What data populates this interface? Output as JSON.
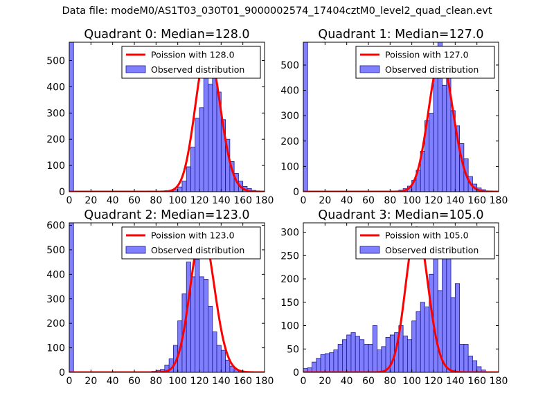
{
  "figure": {
    "suptitle": "Data file: modeM0/AS1T03_030T01_9000002574_17404cztM0_level2_quad_clean.evt"
  },
  "colors": {
    "bar_fill": "#7f7fff",
    "bar_edge": "#1a1a8c",
    "model_line": "#ff0000"
  },
  "chart_data": [
    {
      "type": "bar",
      "title": "Quadrant 0: Median=128.0",
      "xlim": [
        0,
        180
      ],
      "ylim": [
        0,
        570
      ],
      "xticks": [
        "0",
        "20",
        "40",
        "60",
        "80",
        "100",
        "120",
        "140",
        "160",
        "180"
      ],
      "yticks": [
        "0",
        "100",
        "200",
        "300",
        "400",
        "500"
      ],
      "ytick_values": [
        0,
        100,
        200,
        300,
        400,
        500
      ],
      "legend": {
        "placement": "upper right",
        "entries": [
          "Poission with 128.0",
          "Observed distribution"
        ]
      },
      "bins": {
        "start": 0,
        "width": 4,
        "values": [
          570,
          0,
          0,
          0,
          0,
          0,
          0,
          0,
          0,
          0,
          0,
          0,
          0,
          0,
          0,
          0,
          0,
          0,
          3,
          0,
          0,
          3,
          4,
          2,
          8,
          18,
          40,
          95,
          170,
          280,
          320,
          550,
          410,
          450,
          380,
          275,
          200,
          115,
          70,
          40,
          20,
          12,
          5,
          3,
          1
        ]
      },
      "model": {
        "name": "Poission with 128.0",
        "mean": 128.0,
        "peak": 548
      }
    },
    {
      "type": "bar",
      "title": "Quadrant 1: Median=127.0",
      "xlim": [
        0,
        180
      ],
      "ylim": [
        0,
        590
      ],
      "xticks": [
        "0",
        "20",
        "40",
        "60",
        "80",
        "100",
        "120",
        "140",
        "160",
        "180"
      ],
      "yticks": [
        "0",
        "100",
        "200",
        "300",
        "400",
        "500"
      ],
      "ytick_values": [
        0,
        100,
        200,
        300,
        400,
        500
      ],
      "legend": {
        "placement": "upper right",
        "entries": [
          "Poission with 127.0",
          "Observed distribution"
        ]
      },
      "bins": {
        "start": 0,
        "width": 4,
        "values": [
          590,
          0,
          0,
          0,
          0,
          0,
          0,
          0,
          0,
          0,
          0,
          0,
          0,
          0,
          0,
          0,
          0,
          0,
          0,
          0,
          0,
          3,
          6,
          12,
          22,
          45,
          85,
          160,
          280,
          310,
          450,
          600,
          420,
          450,
          320,
          260,
          190,
          130,
          60,
          30,
          15,
          8,
          3,
          1,
          0
        ]
      },
      "model": {
        "name": "Poission with 127.0",
        "mean": 127.0,
        "peak": 528
      }
    },
    {
      "type": "bar",
      "title": "Quadrant 2: Median=123.0",
      "xlim": [
        0,
        180
      ],
      "ylim": [
        0,
        610
      ],
      "xticks": [
        "0",
        "20",
        "40",
        "60",
        "80",
        "100",
        "120",
        "140",
        "160",
        "180"
      ],
      "yticks": [
        "0",
        "100",
        "200",
        "300",
        "400",
        "500",
        "600"
      ],
      "ytick_values": [
        0,
        100,
        200,
        300,
        400,
        500,
        600
      ],
      "legend": {
        "placement": "upper right",
        "entries": [
          "Poission with 123.0",
          "Observed distribution"
        ]
      },
      "bins": {
        "start": 0,
        "width": 4,
        "values": [
          610,
          0,
          0,
          0,
          0,
          0,
          0,
          0,
          0,
          0,
          0,
          0,
          0,
          0,
          0,
          0,
          0,
          3,
          3,
          4,
          8,
          12,
          30,
          55,
          110,
          210,
          320,
          450,
          390,
          460,
          390,
          380,
          270,
          165,
          110,
          90,
          50,
          25,
          10,
          4,
          2,
          0,
          0,
          0,
          0
        ]
      },
      "model": {
        "name": "Poission with 123.0",
        "mean": 123.0,
        "peak": 575
      }
    },
    {
      "type": "bar",
      "title": "Quadrant 3: Median=105.0",
      "xlim": [
        0,
        180
      ],
      "ylim": [
        0,
        320
      ],
      "xticks": [
        "0",
        "20",
        "40",
        "60",
        "80",
        "100",
        "120",
        "140",
        "160",
        "180"
      ],
      "yticks": [
        "0",
        "50",
        "100",
        "150",
        "200",
        "250",
        "300"
      ],
      "ytick_values": [
        0,
        50,
        100,
        150,
        200,
        250,
        300
      ],
      "legend": {
        "placement": "upper right",
        "entries": [
          "Poission with 105.0",
          "Observed distribution"
        ]
      },
      "bins": {
        "start": 0,
        "width": 4,
        "values": [
          8,
          10,
          22,
          30,
          38,
          40,
          42,
          48,
          60,
          70,
          80,
          85,
          77,
          70,
          60,
          60,
          100,
          48,
          55,
          75,
          80,
          85,
          100,
          78,
          70,
          110,
          130,
          150,
          140,
          210,
          310,
          175,
          280,
          310,
          160,
          190,
          60,
          60,
          35,
          25,
          12,
          5,
          0,
          0,
          0
        ]
      },
      "model": {
        "name": "Poission with 105.0",
        "mean": 105.0,
        "peak": 310
      }
    }
  ]
}
